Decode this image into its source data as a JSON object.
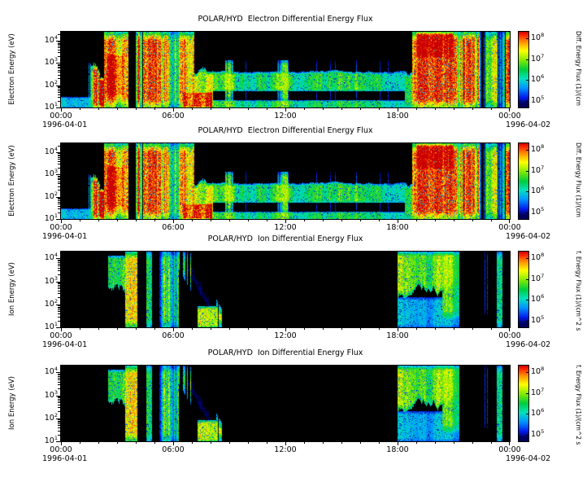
{
  "page": {
    "background": "#ffffff",
    "text_color": "#000000"
  },
  "chart_data": {
    "type": "heatmap",
    "description": "Four stacked time-energy spectrograms of POLAR/HYD differential energy flux for 1996-04-01 to 1996-04-02; panels 1-2 show electrons, panels 3-4 show ions; rainbow colormap on black background",
    "x_range_hours": [
      0,
      24
    ],
    "x_ticks": [
      {
        "label": "00:00",
        "t": 0
      },
      {
        "label": "06:00",
        "t": 6
      },
      {
        "label": "12:00",
        "t": 12
      },
      {
        "label": "18:00",
        "t": 18
      },
      {
        "label": "00:00",
        "t": 24
      }
    ],
    "x_minor_tick_hours": 1,
    "colormap_stops": [
      [
        0.05,
        0,
        0,
        90
      ],
      [
        0.13,
        0,
        25,
        235
      ],
      [
        0.26,
        0,
        150,
        255
      ],
      [
        0.38,
        0,
        225,
        190
      ],
      [
        0.5,
        0,
        205,
        60
      ],
      [
        0.63,
        135,
        235,
        0
      ],
      [
        0.75,
        255,
        255,
        0
      ],
      [
        0.86,
        255,
        150,
        0
      ],
      [
        0.95,
        255,
        40,
        0
      ],
      [
        1.0,
        200,
        0,
        0
      ]
    ],
    "colorbar": {
      "log_range": [
        4.7,
        8.3
      ],
      "tick_exponents": [
        8,
        7,
        6,
        5
      ]
    },
    "panels": [
      {
        "title": "POLAR/HYD  Electron Differential Energy Flux",
        "ylabel": "Electron Energy (eV)",
        "date_start": "1996-04-01",
        "date_end": "1996-04-02",
        "cbar_label": "Diff. Energy Flux (1)/(cm",
        "y_log_range": [
          1,
          4.4
        ],
        "y_tick_exponents": [
          4,
          3,
          2,
          1
        ],
        "spec": "electron",
        "seed": 7
      },
      {
        "title": "POLAR/HYD  Electron Differential Energy Flux",
        "ylabel": "Electron Energy (eV)",
        "date_start": "1996-04-01",
        "date_end": "1996-04-02",
        "cbar_label": "Diff. Energy Flux (1)/(cm",
        "y_log_range": [
          1,
          4.4
        ],
        "y_tick_exponents": [
          4,
          3,
          2,
          1
        ],
        "spec": "electron",
        "seed": 7
      },
      {
        "title": "POLAR/HYD  Ion Differential Energy Flux",
        "ylabel": "Ion Energy (eV)",
        "date_start": "1996-04-01",
        "date_end": "1996-04-02",
        "cbar_label": "f. Energy Flux (1)/(cm^2 s",
        "y_log_range": [
          1,
          4.3
        ],
        "y_tick_exponents": [
          4,
          3,
          2,
          1
        ],
        "spec": "ion",
        "seed": 13
      },
      {
        "title": "POLAR/HYD  Ion Differential Energy Flux",
        "ylabel": "Ion Energy (eV)",
        "date_start": "1996-04-01",
        "date_end": "1996-04-02",
        "cbar_label": "f. Energy Flux (1)/(cm^2 s",
        "y_log_range": [
          1,
          4.3
        ],
        "y_tick_exponents": [
          4,
          3,
          2,
          1
        ],
        "spec": "ion",
        "seed": 13
      }
    ],
    "spectra": {
      "electron": {
        "features": [
          {
            "type": "streaks",
            "t": [
              0.0,
              2.3
            ],
            "le": [
              1.0,
              3.9
            ],
            "v": 0.72,
            "gap": 0.38,
            "rag": 0.55
          },
          {
            "type": "patch",
            "t": [
              0.0,
              2.3
            ],
            "le": [
              1.0,
              1.45
            ],
            "v": 0.42
          },
          {
            "type": "patch",
            "t": [
              2.3,
              3.6
            ],
            "le": [
              1.0,
              4.4
            ],
            "v": 0.78
          },
          {
            "type": "patch",
            "t": [
              2.45,
              3.35
            ],
            "le": [
              1.4,
              3.5
            ],
            "v": 0.93
          },
          {
            "type": "streaks",
            "t": [
              3.6,
              4.35
            ],
            "le": [
              1.0,
              4.4
            ],
            "v": 0.75,
            "gap": 0.62
          },
          {
            "type": "patch",
            "t": [
              4.4,
              5.15
            ],
            "le": [
              1.0,
              4.4
            ],
            "v": 0.8
          },
          {
            "type": "streaks",
            "t": [
              5.15,
              6.3
            ],
            "le": [
              1.0,
              4.4
            ],
            "v": 0.55,
            "gap": 0.28
          },
          {
            "type": "patch",
            "t": [
              6.3,
              7.15
            ],
            "le": [
              1.0,
              4.4
            ],
            "v": 0.75
          },
          {
            "type": "patch",
            "t": [
              6.5,
              8.1
            ],
            "le": [
              1.0,
              1.7
            ],
            "v": 0.9
          },
          {
            "type": "patch",
            "t": [
              7.15,
              8.15
            ],
            "le": [
              1.0,
              3.1
            ],
            "v": 0.6,
            "rag": 0.3
          },
          {
            "type": "band",
            "t": [
              7.8,
              18.4
            ],
            "le": [
              1.75,
              2.65
            ],
            "v": 0.52,
            "rag": 0.12
          },
          {
            "type": "band",
            "t": [
              8.1,
              18.4
            ],
            "le": [
              1.0,
              1.3
            ],
            "v": 0.5
          },
          {
            "type": "streaks",
            "t": [
              8.4,
              18.0
            ],
            "le": [
              1.3,
              3.1
            ],
            "v": 0.36,
            "gap": 0.82
          },
          {
            "type": "patch",
            "t": [
              18.4,
              18.8
            ],
            "le": [
              1.0,
              2.9
            ],
            "v": 0.55,
            "rag": 0.3
          },
          {
            "type": "patch",
            "t": [
              18.8,
              21.2
            ],
            "le": [
              1.0,
              4.4
            ],
            "v": 0.82
          },
          {
            "type": "patch",
            "t": [
              19.0,
              21.0
            ],
            "le": [
              3.2,
              4.4
            ],
            "v": 0.9
          },
          {
            "type": "streaks",
            "t": [
              21.2,
              22.7
            ],
            "le": [
              1.0,
              4.4
            ],
            "v": 0.6,
            "gap": 0.45
          },
          {
            "type": "patch",
            "t": [
              22.7,
              23.35
            ],
            "le": [
              1.0,
              4.4
            ],
            "v": 0.78
          },
          {
            "type": "streaks",
            "t": [
              23.35,
              23.75
            ],
            "le": [
              1.0,
              4.4
            ],
            "v": 0.5,
            "gap": 0.55
          },
          {
            "type": "patch",
            "t": [
              23.78,
              24.0
            ],
            "le": [
              1.0,
              4.4
            ],
            "v": 0.8
          }
        ]
      },
      "ion": {
        "features": [
          {
            "type": "streaks",
            "t": [
              0.55,
              1.7
            ],
            "le": [
              1.0,
              2.9
            ],
            "v": 0.33,
            "gap": 0.45,
            "rag": 0.4
          },
          {
            "type": "patch",
            "t": [
              2.5,
              3.45
            ],
            "le": [
              1.9,
              4.1
            ],
            "v": 0.5,
            "ragb": 0.45
          },
          {
            "type": "patch",
            "t": [
              3.45,
              4.1
            ],
            "le": [
              1.0,
              4.3
            ],
            "v": 0.62
          },
          {
            "type": "patch",
            "t": [
              4.55,
              4.85
            ],
            "le": [
              1.0,
              4.3
            ],
            "v": 0.55
          },
          {
            "type": "streaks",
            "t": [
              5.0,
              6.3
            ],
            "le": [
              1.0,
              4.3
            ],
            "v": 0.42,
            "gap": 0.5
          },
          {
            "type": "wedge",
            "t": [
              6.3,
              8.6
            ],
            "le": [
              1.0,
              4.3
            ],
            "thick": 1.6,
            "v": 0.62,
            "cut": 0.22
          },
          {
            "type": "patch",
            "t": [
              7.3,
              8.4
            ],
            "le": [
              1.0,
              1.9
            ],
            "v": 0.6
          },
          {
            "type": "patch",
            "t": [
              18.0,
              21.3
            ],
            "le": [
              2.3,
              4.3
            ],
            "v": 0.55,
            "ragb": 0.35
          },
          {
            "type": "patch",
            "t": [
              18.0,
              21.3
            ],
            "le": [
              1.0,
              2.3
            ],
            "v": 0.28
          },
          {
            "type": "patch",
            "t": [
              20.4,
              21.3
            ],
            "le": [
              1.4,
              4.3
            ],
            "v": 0.5
          },
          {
            "type": "streaks",
            "t": [
              21.5,
              23.2
            ],
            "le": [
              1.6,
              4.3
            ],
            "v": 0.4,
            "gap": 0.62
          },
          {
            "type": "patch",
            "t": [
              23.3,
              23.6
            ],
            "le": [
              1.0,
              4.3
            ],
            "v": 0.55
          },
          {
            "type": "streaks",
            "t": [
              23.65,
              24.0
            ],
            "le": [
              1.3,
              4.3
            ],
            "v": 0.4,
            "gap": 0.5
          }
        ]
      }
    }
  }
}
